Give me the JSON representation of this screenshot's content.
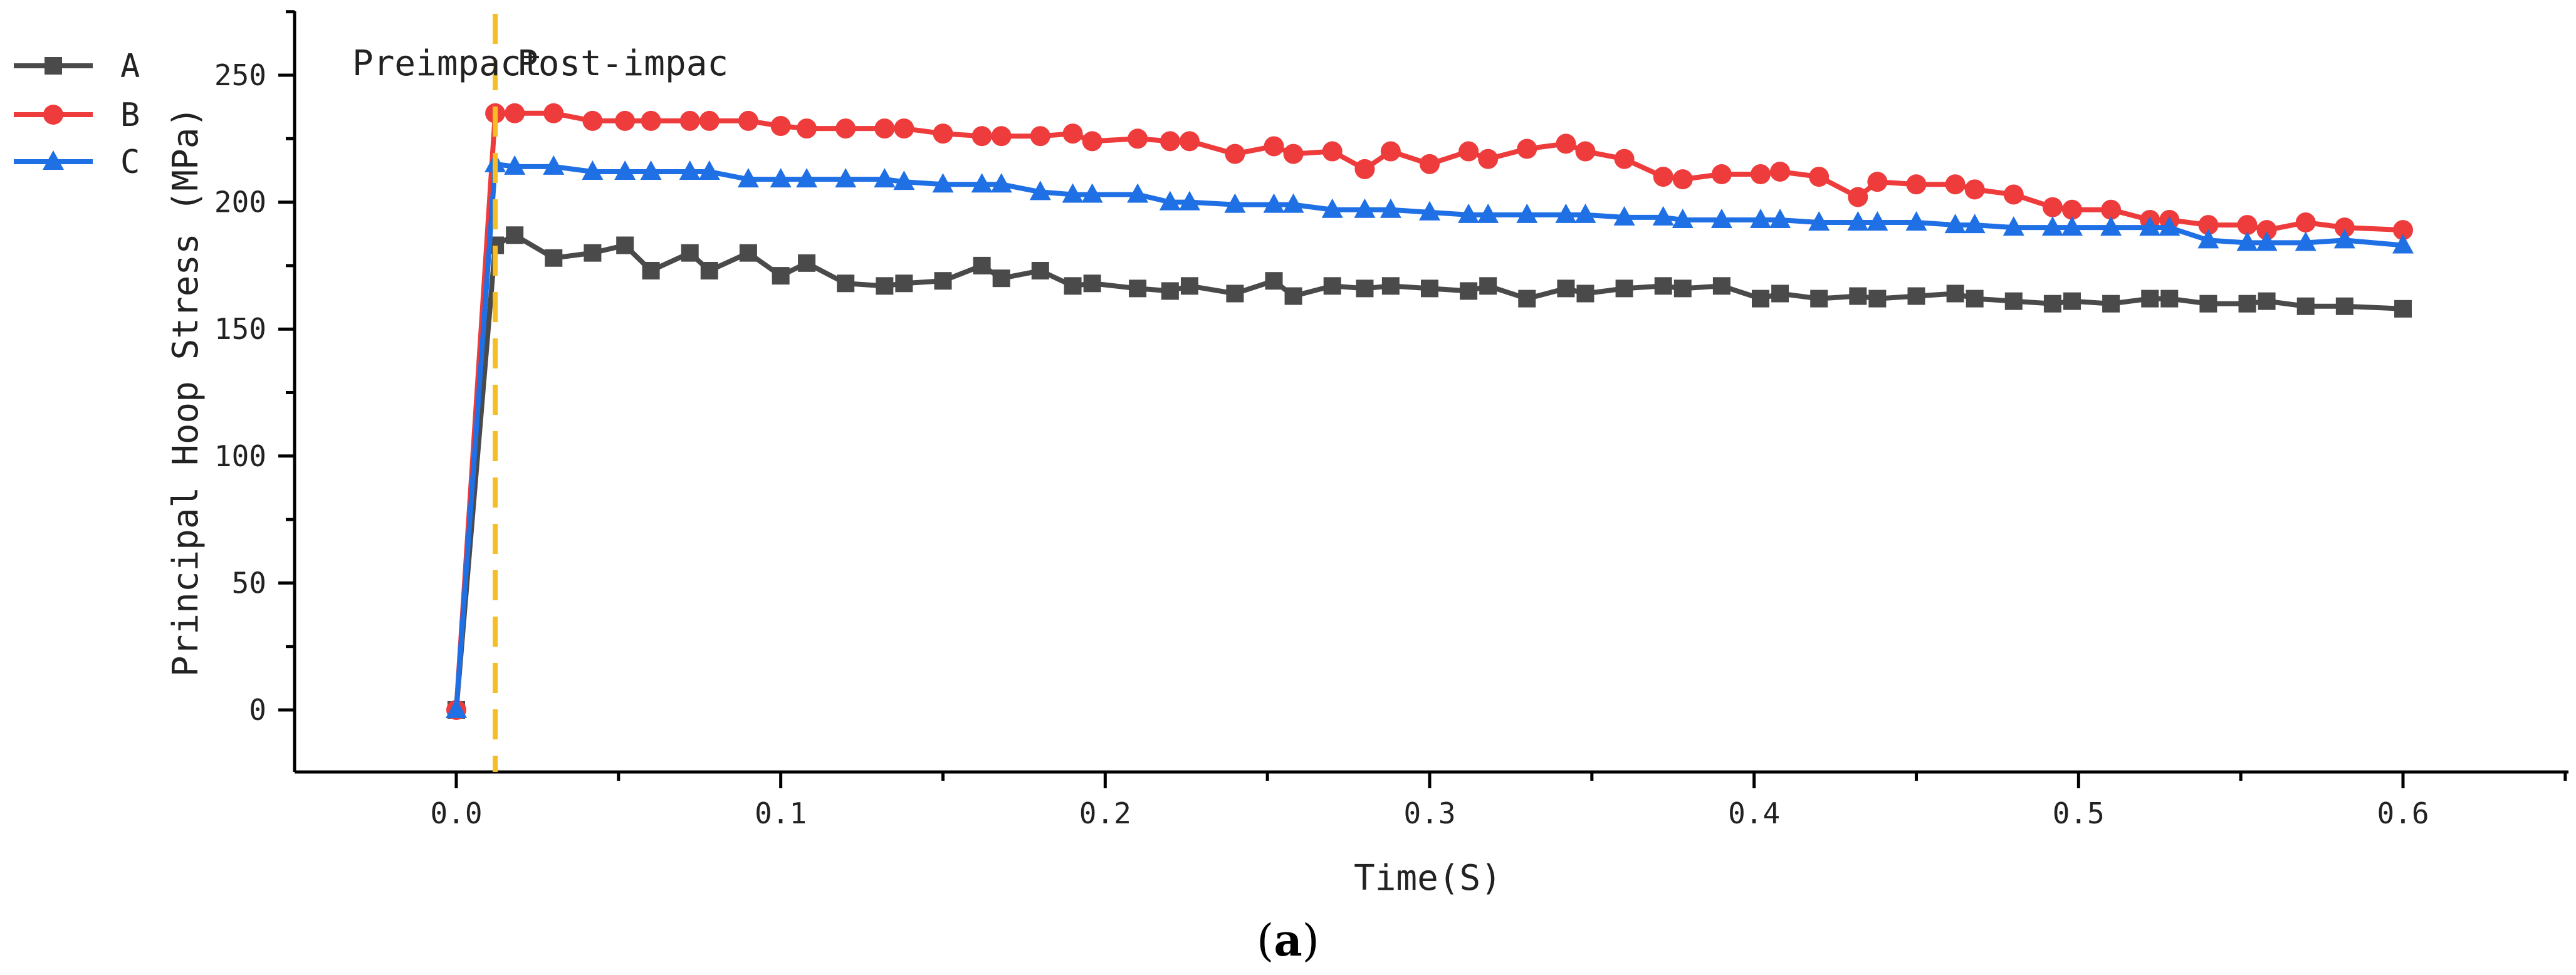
{
  "chart_data": {
    "type": "line",
    "title": "",
    "xlabel": "Time(S)",
    "ylabel": "Principal Hoop Stress (MPa)",
    "xlim": [
      -0.05,
      0.65
    ],
    "ylim": [
      -25,
      275
    ],
    "xticks": [
      0.0,
      0.1,
      0.2,
      0.3,
      0.4,
      0.5,
      0.6
    ],
    "xtick_labels": [
      "0.0",
      "0.1",
      "0.2",
      "0.3",
      "0.4",
      "0.5",
      "0.6"
    ],
    "yticks": [
      0,
      50,
      100,
      150,
      200,
      250
    ],
    "ytick_labels": [
      "0",
      "50",
      "100",
      "150",
      "200",
      "250"
    ],
    "legend": "top-left",
    "annotations": {
      "impact_time": 0.012,
      "pre_label": "Preimpact",
      "post_label": "Post-impac",
      "line_color": "#F5BE24"
    },
    "caption": {
      "open": "(",
      "letter": "a",
      "close": ")"
    },
    "series": [
      {
        "name": "A",
        "color": "#4A4A4A",
        "marker": "square",
        "x": [
          0,
          0.012,
          0.018,
          0.03,
          0.042,
          0.052,
          0.06,
          0.072,
          0.078,
          0.09,
          0.1,
          0.108,
          0.12,
          0.132,
          0.138,
          0.15,
          0.162,
          0.168,
          0.18,
          0.19,
          0.196,
          0.21,
          0.22,
          0.226,
          0.24,
          0.252,
          0.258,
          0.27,
          0.28,
          0.288,
          0.3,
          0.312,
          0.318,
          0.33,
          0.342,
          0.348,
          0.36,
          0.372,
          0.378,
          0.39,
          0.402,
          0.408,
          0.42,
          0.432,
          0.438,
          0.45,
          0.462,
          0.468,
          0.48,
          0.492,
          0.498,
          0.51,
          0.522,
          0.528,
          0.54,
          0.552,
          0.558,
          0.57,
          0.582,
          0.6
        ],
        "values": [
          0,
          183,
          187,
          178,
          180,
          183,
          173,
          180,
          173,
          180,
          171,
          176,
          168,
          167,
          168,
          169,
          175,
          170,
          173,
          167,
          168,
          166,
          165,
          167,
          164,
          169,
          163,
          167,
          166,
          167,
          166,
          165,
          167,
          162,
          166,
          164,
          166,
          167,
          166,
          167,
          162,
          164,
          162,
          163,
          162,
          163,
          164,
          162,
          161,
          160,
          161,
          160,
          162,
          162,
          160,
          160,
          161,
          159,
          159,
          158
        ]
      },
      {
        "name": "B",
        "color": "#EE3B3B",
        "marker": "circle",
        "x": [
          0,
          0.012,
          0.018,
          0.03,
          0.042,
          0.052,
          0.06,
          0.072,
          0.078,
          0.09,
          0.1,
          0.108,
          0.12,
          0.132,
          0.138,
          0.15,
          0.162,
          0.168,
          0.18,
          0.19,
          0.196,
          0.21,
          0.22,
          0.226,
          0.24,
          0.252,
          0.258,
          0.27,
          0.28,
          0.288,
          0.3,
          0.312,
          0.318,
          0.33,
          0.342,
          0.348,
          0.36,
          0.372,
          0.378,
          0.39,
          0.402,
          0.408,
          0.42,
          0.432,
          0.438,
          0.45,
          0.462,
          0.468,
          0.48,
          0.492,
          0.498,
          0.51,
          0.522,
          0.528,
          0.54,
          0.552,
          0.558,
          0.57,
          0.582,
          0.6
        ],
        "values": [
          0,
          235,
          235,
          235,
          232,
          232,
          232,
          232,
          232,
          232,
          230,
          229,
          229,
          229,
          229,
          227,
          226,
          226,
          226,
          227,
          224,
          225,
          224,
          224,
          219,
          222,
          219,
          220,
          213,
          220,
          215,
          220,
          217,
          221,
          223,
          220,
          217,
          210,
          209,
          211,
          211,
          212,
          210,
          202,
          208,
          207,
          207,
          205,
          203,
          198,
          197,
          197,
          193,
          193,
          191,
          191,
          189,
          192,
          190,
          189
        ]
      },
      {
        "name": "C",
        "color": "#1F6FE5",
        "marker": "triangle",
        "x": [
          0,
          0.012,
          0.018,
          0.03,
          0.042,
          0.052,
          0.06,
          0.072,
          0.078,
          0.09,
          0.1,
          0.108,
          0.12,
          0.132,
          0.138,
          0.15,
          0.162,
          0.168,
          0.18,
          0.19,
          0.196,
          0.21,
          0.22,
          0.226,
          0.24,
          0.252,
          0.258,
          0.27,
          0.28,
          0.288,
          0.3,
          0.312,
          0.318,
          0.33,
          0.342,
          0.348,
          0.36,
          0.372,
          0.378,
          0.39,
          0.402,
          0.408,
          0.42,
          0.432,
          0.438,
          0.45,
          0.462,
          0.468,
          0.48,
          0.492,
          0.498,
          0.51,
          0.522,
          0.528,
          0.54,
          0.552,
          0.558,
          0.57,
          0.582,
          0.6
        ],
        "values": [
          0,
          215,
          214,
          214,
          212,
          212,
          212,
          212,
          212,
          209,
          209,
          209,
          209,
          209,
          208,
          207,
          207,
          207,
          204,
          203,
          203,
          203,
          200,
          200,
          199,
          199,
          199,
          197,
          197,
          197,
          196,
          195,
          195,
          195,
          195,
          195,
          194,
          194,
          193,
          193,
          193,
          193,
          192,
          192,
          192,
          192,
          191,
          191,
          190,
          190,
          190,
          190,
          190,
          190,
          185,
          184,
          184,
          184,
          185,
          183
        ]
      }
    ]
  }
}
